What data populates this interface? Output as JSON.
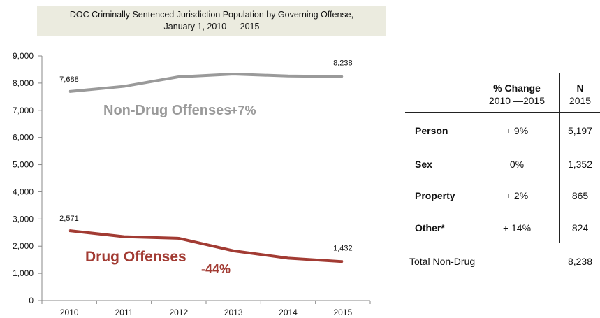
{
  "chart_data": {
    "type": "line",
    "title_line1": "DOC Criminally Sentenced Jurisdiction Population by Governing Offense,",
    "title_line2": "January 1, 2010 — 2015",
    "x": [
      "2010",
      "2011",
      "2012",
      "2013",
      "2014",
      "2015"
    ],
    "ylim": [
      0,
      9000
    ],
    "yticks": [
      "0",
      "1,000",
      "2,000",
      "3,000",
      "4,000",
      "5,000",
      "6,000",
      "7,000",
      "8,000",
      "9,000"
    ],
    "grid": false,
    "series": [
      {
        "name": "Non-Drug Offenses",
        "values": [
          7688,
          7880,
          8230,
          8330,
          8260,
          8238
        ],
        "color": "#9a9a9a",
        "change": "+7%",
        "start_label": "7,688",
        "end_label": "8,238"
      },
      {
        "name": "Drug Offenses",
        "values": [
          2571,
          2350,
          2290,
          1830,
          1560,
          1432
        ],
        "color": "#a23b33",
        "change": "-44%",
        "start_label": "2,571",
        "end_label": "1,432"
      }
    ]
  },
  "table": {
    "col_change": "% Change",
    "col_change_sub": "2010 —2015",
    "col_n": "N",
    "col_n_sub": "2015",
    "rows": [
      {
        "label": "Person",
        "change": "+ 9%",
        "n": "5,197"
      },
      {
        "label": "Sex",
        "change": "0%",
        "n": "1,352"
      },
      {
        "label": "Property",
        "change": "+ 2%",
        "n": "865"
      },
      {
        "label": "Other*",
        "change": "+ 14%",
        "n": "824"
      }
    ],
    "total_label": "Total Non-Drug",
    "total_n": "8,238"
  }
}
